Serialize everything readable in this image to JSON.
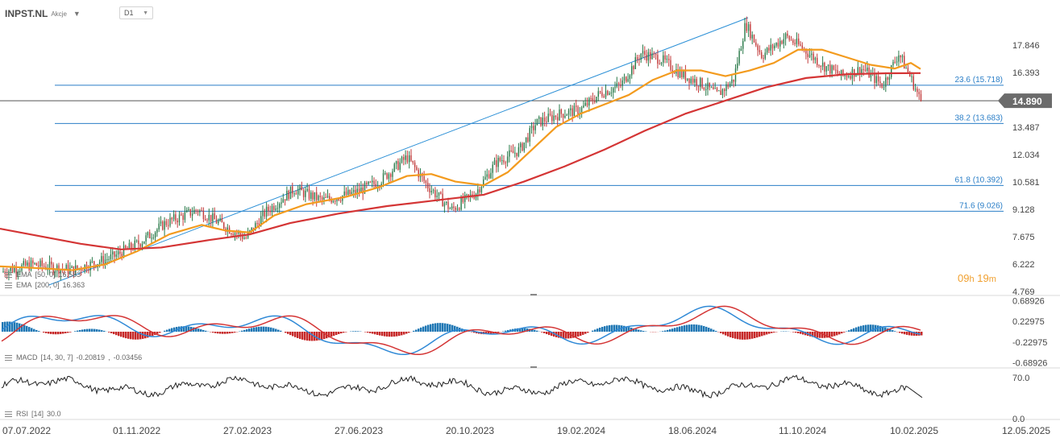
{
  "header": {
    "symbol": "INPST.NL",
    "instrument_type": "Akcje",
    "timeframe": "D1"
  },
  "countdown": {
    "hours": "09",
    "h_unit": "h",
    "minutes": "19",
    "m_unit": "m"
  },
  "indicators": {
    "ema50": {
      "label": "EMA",
      "params": "[50, 0]",
      "value": "16.583",
      "color": "#f39b1e"
    },
    "ema200": {
      "label": "EMA",
      "params": "[200, 0]",
      "value": "16.363",
      "color": "#d43535"
    },
    "macd": {
      "label": "MACD",
      "params": "[14, 30, 7]",
      "value1": "-0.20819",
      "value2": "-0.03456"
    },
    "rsi": {
      "label": "RSI",
      "params": "[14]",
      "value": "30.0"
    }
  },
  "chart_data": [
    {
      "type": "candlestick",
      "title": "INPST.NL",
      "x_labels": [
        "07.07.2022",
        "01.11.2022",
        "27.02.2023",
        "27.06.2023",
        "20.10.2023",
        "19.02.2024",
        "18.06.2024",
        "11.10.2024",
        "10.02.2025",
        "12.05.2025"
      ],
      "y_ticks": [
        4.769,
        6.222,
        7.675,
        9.128,
        10.581,
        12.034,
        13.487,
        16.393,
        17.846
      ],
      "ylim": [
        4.769,
        19.3
      ],
      "last_price": 14.89,
      "last_price_label": "14.890",
      "price_path": [
        [
          0,
          5.8
        ],
        [
          40,
          6.2
        ],
        [
          90,
          5.9
        ],
        [
          140,
          6.6
        ],
        [
          175,
          7.4
        ],
        [
          205,
          8.4
        ],
        [
          245,
          9.1
        ],
        [
          280,
          8.2
        ],
        [
          305,
          7.6
        ],
        [
          330,
          9.0
        ],
        [
          365,
          10.2
        ],
        [
          400,
          9.6
        ],
        [
          440,
          10.0
        ],
        [
          470,
          10.6
        ],
        [
          505,
          11.9
        ],
        [
          530,
          10.4
        ],
        [
          560,
          9.1
        ],
        [
          590,
          10.0
        ],
        [
          615,
          11.6
        ],
        [
          645,
          12.3
        ],
        [
          665,
          13.7
        ],
        [
          695,
          14.2
        ],
        [
          720,
          14.4
        ],
        [
          745,
          15.3
        ],
        [
          770,
          15.7
        ],
        [
          795,
          17.4
        ],
        [
          820,
          17.1
        ],
        [
          845,
          16.3
        ],
        [
          870,
          15.8
        ],
        [
          890,
          15.2
        ],
        [
          910,
          16.0
        ],
        [
          925,
          19.0
        ],
        [
          945,
          17.3
        ],
        [
          975,
          18.3
        ],
        [
          995,
          17.7
        ],
        [
          1020,
          16.8
        ],
        [
          1045,
          16.2
        ],
        [
          1070,
          16.6
        ],
        [
          1095,
          15.7
        ],
        [
          1115,
          17.4
        ],
        [
          1130,
          16.1
        ],
        [
          1142,
          14.89
        ]
      ],
      "series": [
        {
          "name": "EMA [50, 0]",
          "color": "#f39b1e",
          "points": [
            [
              0,
              6.1
            ],
            [
              50,
              6.0
            ],
            [
              90,
              5.9
            ],
            [
              130,
              6.2
            ],
            [
              170,
              6.9
            ],
            [
              210,
              7.8
            ],
            [
              250,
              8.3
            ],
            [
              280,
              8.0
            ],
            [
              310,
              7.9
            ],
            [
              340,
              8.8
            ],
            [
              380,
              9.4
            ],
            [
              430,
              9.8
            ],
            [
              470,
              10.3
            ],
            [
              505,
              10.9
            ],
            [
              535,
              11.0
            ],
            [
              565,
              10.6
            ],
            [
              600,
              10.4
            ],
            [
              630,
              11.1
            ],
            [
              660,
              12.3
            ],
            [
              690,
              13.5
            ],
            [
              720,
              14.2
            ],
            [
              750,
              14.7
            ],
            [
              780,
              15.2
            ],
            [
              810,
              16.0
            ],
            [
              840,
              16.5
            ],
            [
              870,
              16.5
            ],
            [
              900,
              16.2
            ],
            [
              930,
              16.5
            ],
            [
              960,
              16.9
            ],
            [
              990,
              17.6
            ],
            [
              1020,
              17.6
            ],
            [
              1050,
              17.2
            ],
            [
              1080,
              16.8
            ],
            [
              1110,
              16.6
            ],
            [
              1130,
              16.9
            ],
            [
              1142,
              16.58
            ]
          ]
        },
        {
          "name": "EMA [200, 0]",
          "color": "#d43535",
          "points": [
            [
              0,
              8.1
            ],
            [
              50,
              7.7
            ],
            [
              100,
              7.3
            ],
            [
              150,
              7.0
            ],
            [
              200,
              7.1
            ],
            [
              260,
              7.5
            ],
            [
              310,
              7.8
            ],
            [
              360,
              8.4
            ],
            [
              420,
              8.9
            ],
            [
              480,
              9.3
            ],
            [
              540,
              9.6
            ],
            [
              600,
              9.9
            ],
            [
              650,
              10.6
            ],
            [
              700,
              11.4
            ],
            [
              750,
              12.3
            ],
            [
              800,
              13.3
            ],
            [
              850,
              14.2
            ],
            [
              900,
              14.9
            ],
            [
              950,
              15.6
            ],
            [
              1000,
              16.1
            ],
            [
              1050,
              16.3
            ],
            [
              1100,
              16.35
            ],
            [
              1142,
              16.36
            ]
          ]
        }
      ],
      "fibonacci": [
        {
          "level": "23.6",
          "value": 15.718,
          "label": "23.6 (15.718)"
        },
        {
          "level": "38.2",
          "value": 13.683,
          "label": "38.2 (13.683)"
        },
        {
          "level": "61.8",
          "value": 10.392,
          "label": "61.8 (10.392)"
        },
        {
          "level": "71.6",
          "value": 9.026,
          "label": "71.6 (9.026)"
        }
      ],
      "trendline": {
        "from": [
          60,
          5.1
        ],
        "to": [
          928,
          19.3
        ]
      }
    },
    {
      "type": "histogram",
      "title": "MACD [14, 30, 7]",
      "y_ticks": [
        0.68926,
        0.22975,
        -0.22975,
        -0.68926
      ],
      "y_tick_labels": [
        "0.68926",
        "0.22975",
        "-0.22975",
        "-0.68926"
      ],
      "ylim": [
        -0.72,
        0.72
      ],
      "current": [
        -0.20819,
        -0.03456
      ]
    },
    {
      "type": "line",
      "title": "RSI [14]",
      "y_ticks": [
        70.0,
        0.0
      ],
      "y_tick_labels": [
        "70.0",
        "0.0"
      ],
      "ylim": [
        0,
        100
      ],
      "last": 30.0
    }
  ]
}
